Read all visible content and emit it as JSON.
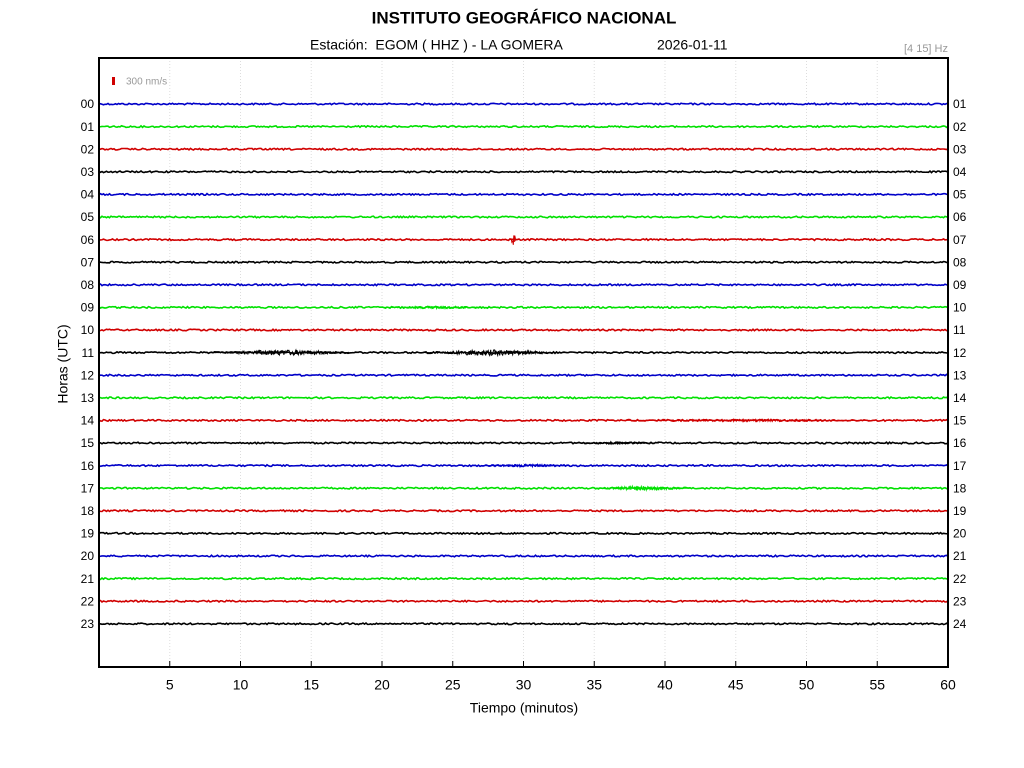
{
  "chart_data": {
    "type": "helicorder",
    "title": "INSTITUTO GEOGRÁFICO NACIONAL",
    "station": "Estación:  EGOM ( HHZ ) - LA GOMERA",
    "date": "2026-01-11",
    "filter": "[4 15] Hz",
    "scale": {
      "value": 300,
      "label": "300 nm/s"
    },
    "scale_color": "#d00000",
    "y_label": "Horas (UTC)",
    "x_label": "Tiempo (minutos)",
    "xlim": [
      0,
      60
    ],
    "xticks": [
      5,
      10,
      15,
      20,
      25,
      30,
      35,
      40,
      45,
      50,
      55,
      60
    ],
    "grid": true,
    "series": [
      {
        "name": "00",
        "end_label": "01",
        "color": "#0000c8",
        "events": []
      },
      {
        "name": "01",
        "end_label": "02",
        "color": "#00e000",
        "events": []
      },
      {
        "name": "02",
        "end_label": "03",
        "color": "#d00000",
        "events": []
      },
      {
        "name": "03",
        "end_label": "04",
        "color": "#000000",
        "events": []
      },
      {
        "name": "04",
        "end_label": "05",
        "color": "#0000c8",
        "events": []
      },
      {
        "name": "05",
        "end_label": "06",
        "color": "#00e000",
        "events": []
      },
      {
        "name": "06",
        "end_label": "07",
        "color": "#d00000",
        "events": [
          {
            "x": [
              29.1,
              29.5
            ],
            "peak": 750
          }
        ]
      },
      {
        "name": "07",
        "end_label": "08",
        "color": "#000000",
        "events": []
      },
      {
        "name": "08",
        "end_label": "09",
        "color": "#0000c8",
        "events": []
      },
      {
        "name": "09",
        "end_label": "10",
        "color": "#00e000",
        "events": [
          {
            "x": [
              20,
              28
            ],
            "peak": 100
          }
        ]
      },
      {
        "name": "10",
        "end_label": "11",
        "color": "#d00000",
        "events": []
      },
      {
        "name": "11",
        "end_label": "12",
        "color": "#000000",
        "events": [
          {
            "x": [
              7.8,
              18.4
            ],
            "peak": 200
          },
          {
            "x": [
              22.7,
              33
            ],
            "peak": 220
          }
        ]
      },
      {
        "name": "12",
        "end_label": "13",
        "color": "#0000c8",
        "events": []
      },
      {
        "name": "13",
        "end_label": "14",
        "color": "#00e000",
        "events": []
      },
      {
        "name": "14",
        "end_label": "15",
        "color": "#d00000",
        "events": [
          {
            "x": [
              37.2,
              54.5
            ],
            "peak": 80
          }
        ]
      },
      {
        "name": "15",
        "end_label": "16",
        "color": "#000000",
        "events": [
          {
            "x": [
              33.6,
              39.6
            ],
            "peak": 80
          }
        ]
      },
      {
        "name": "16",
        "end_label": "17",
        "color": "#0000c8",
        "events": [
          {
            "x": [
              27,
              33.3
            ],
            "peak": 100
          }
        ]
      },
      {
        "name": "17",
        "end_label": "18",
        "color": "#00e000",
        "events": [
          {
            "x": [
              35,
              41.8
            ],
            "peak": 180
          }
        ]
      },
      {
        "name": "18",
        "end_label": "19",
        "color": "#d00000",
        "events": []
      },
      {
        "name": "19",
        "end_label": "20",
        "color": "#000000",
        "events": []
      },
      {
        "name": "20",
        "end_label": "21",
        "color": "#0000c8",
        "events": []
      },
      {
        "name": "21",
        "end_label": "22",
        "color": "#00e000",
        "events": []
      },
      {
        "name": "22",
        "end_label": "23",
        "color": "#d00000",
        "events": []
      },
      {
        "name": "23",
        "end_label": "24",
        "color": "#000000",
        "events": []
      }
    ]
  }
}
